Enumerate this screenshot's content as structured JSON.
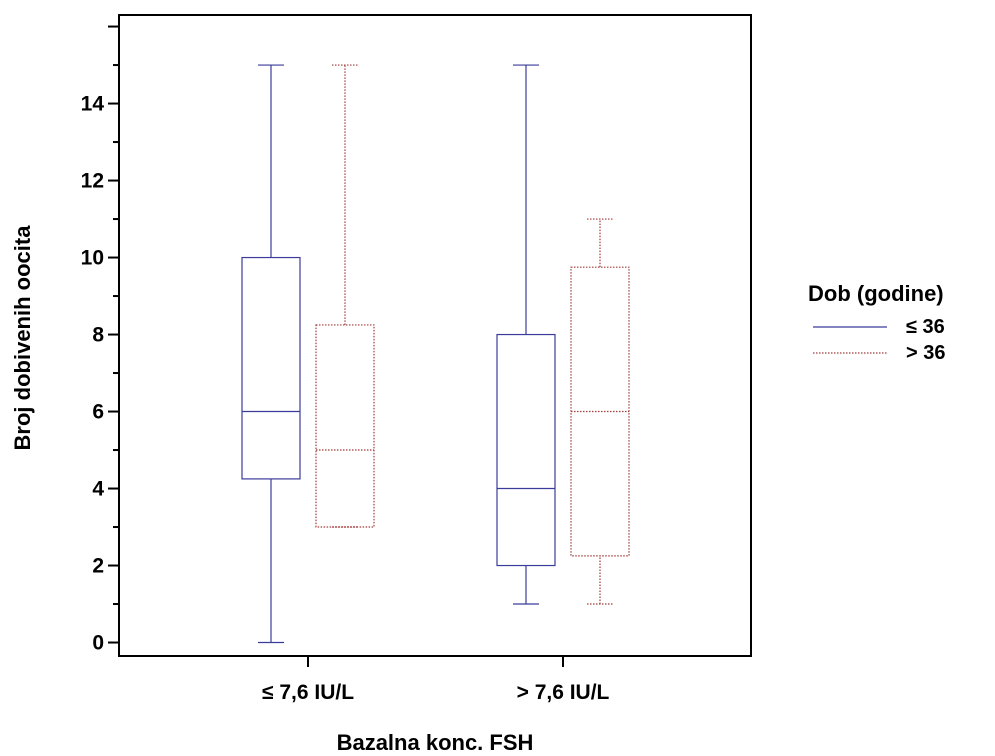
{
  "chart_data": {
    "type": "boxplot",
    "xlabel": "Bazalna konc. FSH",
    "ylabel": "Broj dobivenih oocita",
    "ylim": [
      -0.35,
      16.3
    ],
    "yticks": [
      0,
      2,
      4,
      6,
      8,
      10,
      12,
      14
    ],
    "categories": [
      "≤ 7,6 IU/L",
      "> 7,6 IU/L"
    ],
    "grid": false,
    "legend": {
      "title": "Dob (godine)",
      "placement": "right",
      "entries": [
        "≤ 36",
        "> 36"
      ]
    },
    "series": [
      {
        "name": "≤ 36",
        "color": "#3b3b9b",
        "line_style": "solid",
        "boxes": [
          {
            "min": 0,
            "q1": 4.25,
            "median": 6,
            "q3": 10,
            "max": 15
          },
          {
            "min": 1,
            "q1": 2,
            "median": 4,
            "q3": 8,
            "max": 15
          }
        ]
      },
      {
        "name": "> 36",
        "color": "#a33a3a",
        "line_style": "dotted",
        "boxes": [
          {
            "min": 3,
            "q1": 3,
            "median": 5,
            "q3": 8.25,
            "max": 15
          },
          {
            "min": 1,
            "q1": 2.25,
            "median": 6,
            "q3": 9.75,
            "max": 11
          }
        ]
      }
    ]
  }
}
